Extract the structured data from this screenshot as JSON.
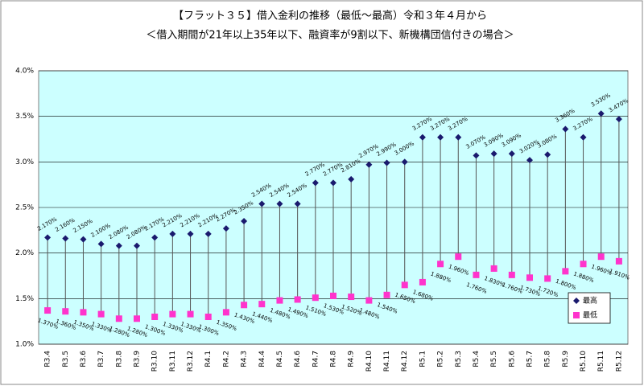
{
  "chart_data": {
    "type": "hilo",
    "title": "【フラット３５】借入金利の推移（最低～最高）令和３年４月から",
    "subtitle": "＜借入期間が21年以上35年以下、融資率が9割以下、新機構団信付きの場合＞",
    "categories": [
      "R3.4",
      "R3.5",
      "R3.6",
      "R3.7",
      "R3.8",
      "R3.9",
      "R3.10",
      "R3.11",
      "R3.12",
      "R4.1",
      "R4.2",
      "R4.3",
      "R4.4",
      "R4.5",
      "R4.6",
      "R4.7",
      "R4.8",
      "R4.9",
      "R4.10",
      "R4.11",
      "R4.12",
      "R5.1",
      "R5.2",
      "R5.3",
      "R5.4",
      "R5.5",
      "R5.6",
      "R5.7",
      "R5.8",
      "R5.9",
      "R5.10",
      "R5.11",
      "R5.12"
    ],
    "series": [
      {
        "name": "最高",
        "color": "#1a1a6e",
        "marker": "diamond",
        "values": [
          2.17,
          2.16,
          2.15,
          2.1,
          2.08,
          2.08,
          2.17,
          2.21,
          2.21,
          2.21,
          2.27,
          2.35,
          2.54,
          2.54,
          2.54,
          2.77,
          2.77,
          2.81,
          2.97,
          2.99,
          3.0,
          3.27,
          3.27,
          3.27,
          3.07,
          3.09,
          3.09,
          3.02,
          3.08,
          3.36,
          3.27,
          3.53,
          3.47
        ],
        "value_labels": [
          "2.170%",
          "2.160%",
          "2.150%",
          "2.100%",
          "2.080%",
          "2.080%",
          "2.170%",
          "2.210%",
          "2.210%",
          "2.210%",
          "2.270%",
          "2.350%",
          "2.540%",
          "2.540%",
          "2.540%",
          "2.770%",
          "2.770%",
          "2.810%",
          "2.970%",
          "2.990%",
          "3.000%",
          "3.270%",
          "3.270%",
          "3.270%",
          "3.070%",
          "3.090%",
          "3.090%",
          "3.020%",
          "3.080%",
          "3.360%",
          "3.270%",
          "3.530%",
          "3.470%"
        ]
      },
      {
        "name": "最低",
        "color": "#ff33cc",
        "marker": "square",
        "values": [
          1.37,
          1.36,
          1.35,
          1.33,
          1.28,
          1.28,
          1.3,
          1.33,
          1.33,
          1.3,
          1.35,
          1.43,
          1.44,
          1.48,
          1.49,
          1.51,
          1.53,
          1.52,
          1.48,
          1.54,
          1.65,
          1.68,
          1.88,
          1.96,
          1.76,
          1.83,
          1.76,
          1.73,
          1.72,
          1.8,
          1.88,
          1.96,
          1.91
        ],
        "value_labels": [
          "1.370%",
          "1.360%",
          "1.350%",
          "1.330%",
          "1.280%",
          "1.280%",
          "1.300%",
          "1.330%",
          "1.330%",
          "1.300%",
          "1.350%",
          "1.430%",
          "1.440%",
          "1.480%",
          "1.490%",
          "1.510%",
          "1.530%",
          "1.520%",
          "1.480%",
          "1.540%",
          "1.650%",
          "1.680%",
          "1.880%",
          "1.960%",
          "1.760%",
          "1.830%",
          "1.760%",
          "1.730%",
          "1.720%",
          "1.800%",
          "1.880%",
          "1.960%",
          "1.910%"
        ]
      }
    ],
    "ylim": [
      1,
      4
    ],
    "yticks": [
      {
        "value": 1,
        "label": "1.0%"
      },
      {
        "value": 1.5,
        "label": "1.5%"
      },
      {
        "value": 2,
        "label": "2.0%"
      },
      {
        "value": 2.5,
        "label": "2.5%"
      },
      {
        "value": 3,
        "label": "3.0%"
      },
      {
        "value": 3.5,
        "label": "3.5%"
      },
      {
        "value": 4,
        "label": "4.0%"
      }
    ],
    "grid": true,
    "hi_lo_lines": true,
    "plot_background": "#ccffff",
    "legend": "lower right"
  }
}
